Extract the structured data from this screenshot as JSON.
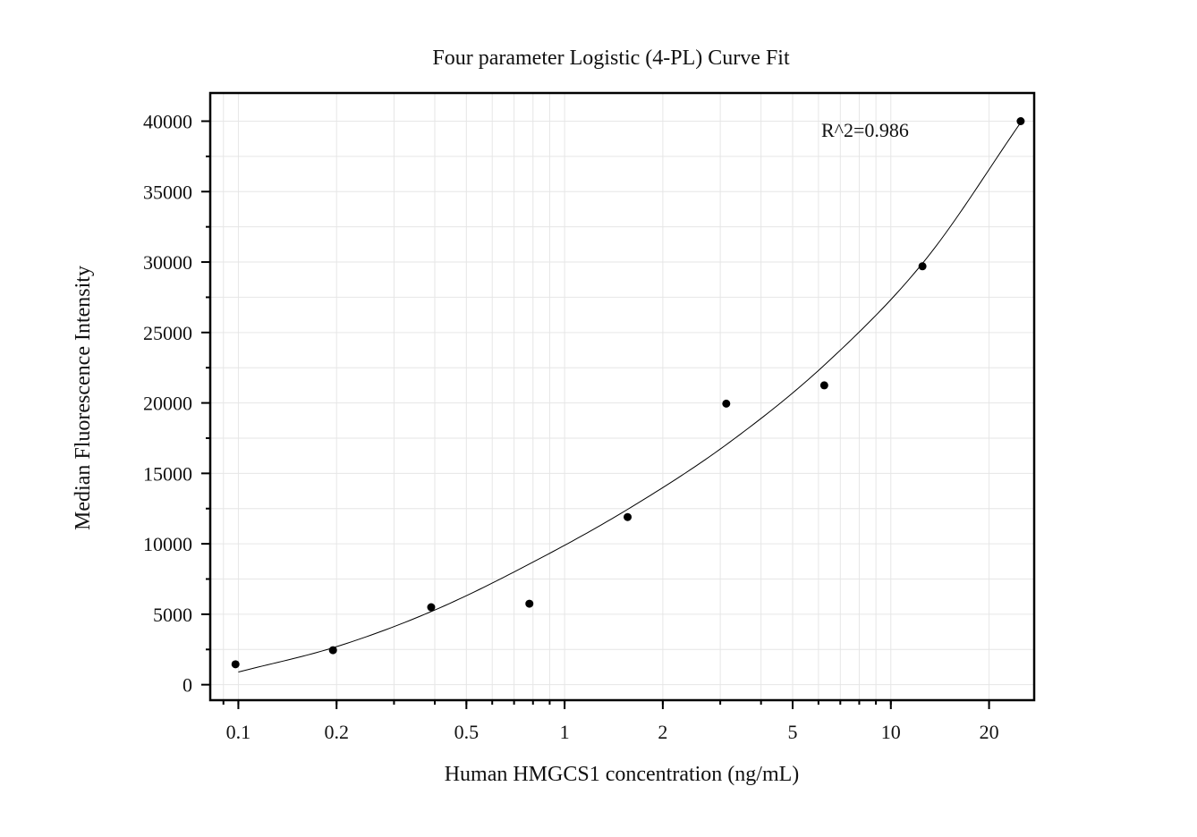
{
  "chart_data": {
    "type": "scatter",
    "title": "Four parameter Logistic (4-PL) Curve Fit",
    "xlabel": "Human HMGCS1 concentration (ng/mL)",
    "ylabel": "Median Fluorescence Intensity",
    "x_scale": "log",
    "xlim": [
      0.082,
      27.5
    ],
    "ylim": [
      -1100,
      42000
    ],
    "x_ticks": [
      0.1,
      0.2,
      0.5,
      1,
      2,
      5,
      10,
      20
    ],
    "x_tick_labels": [
      "0.1",
      "0.2",
      "0.5",
      "1",
      "2",
      "5",
      "10",
      "20"
    ],
    "y_ticks": [
      0,
      5000,
      10000,
      15000,
      20000,
      25000,
      30000,
      35000,
      40000
    ],
    "y_tick_labels": [
      "0",
      "5000",
      "10000",
      "15000",
      "20000",
      "25000",
      "30000",
      "35000",
      "40000"
    ],
    "grid": true,
    "annotation": "R^2=0.986",
    "series": [
      {
        "kind": "points",
        "x": [
          0.098,
          0.195,
          0.39,
          0.78,
          1.56,
          3.13,
          6.25,
          12.5,
          25
        ],
        "y": [
          1450,
          2450,
          5500,
          5750,
          11900,
          19950,
          21250,
          29700,
          40000
        ]
      },
      {
        "kind": "fit-curve",
        "x": [
          0.1,
          0.2,
          0.4,
          0.8,
          1.6,
          3.2,
          6.4,
          12.8,
          25
        ],
        "y": [
          900,
          2700,
          5300,
          8700,
          12600,
          17200,
          22900,
          30200,
          39900
        ]
      }
    ],
    "colors": {
      "points": "#000000",
      "curve": "#000000",
      "grid": "#e6e6e6",
      "background": "#ffffff"
    }
  }
}
